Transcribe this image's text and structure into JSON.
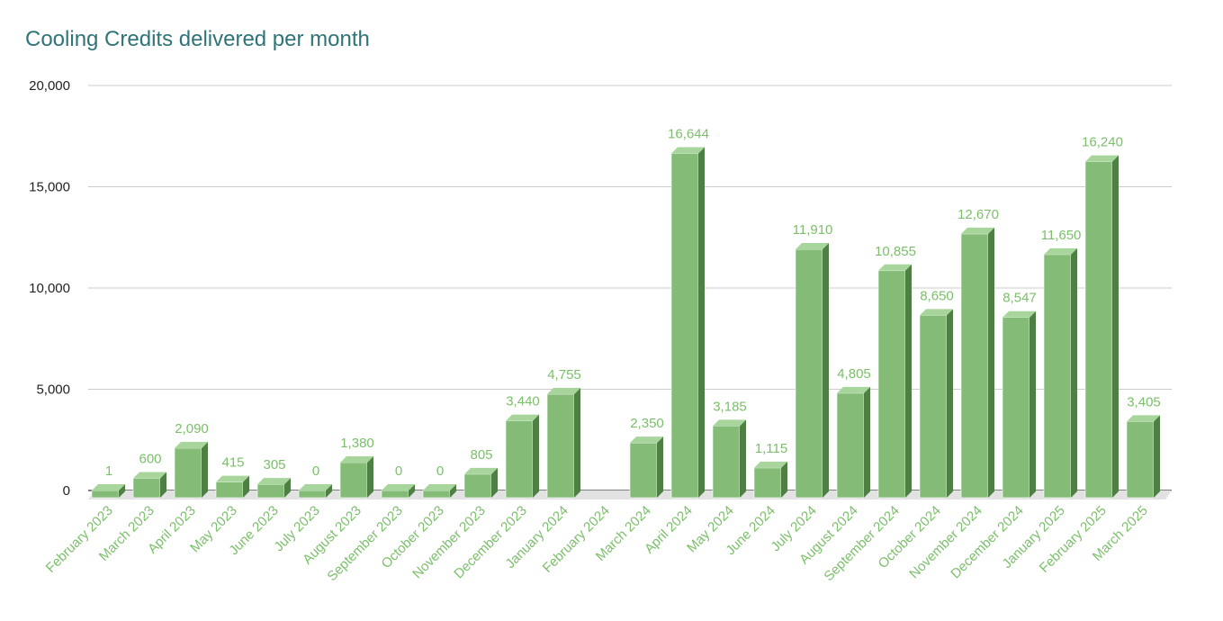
{
  "chart_data": {
    "type": "bar",
    "title": "Cooling Credits delivered per month",
    "xlabel": "",
    "ylabel": "",
    "ylim": [
      0,
      20000
    ],
    "yticks": [
      0,
      5000,
      10000,
      15000,
      20000
    ],
    "ytick_labels": [
      "0",
      "5,000",
      "10,000",
      "15,000",
      "20,000"
    ],
    "grid": true,
    "categories": [
      "February 2023",
      "March 2023",
      "April 2023",
      "May 2023",
      "June 2023",
      "July 2023",
      "August 2023",
      "September 2023",
      "October 2023",
      "November 2023",
      "December 2023",
      "January 2024",
      "February 2024",
      "March 2024",
      "April 2024",
      "May 2024",
      "June 2024",
      "July 2024",
      "August 2024",
      "September 2024",
      "October 2024",
      "November 2024",
      "December 2024",
      "January 2025",
      "February 2025",
      "March 2025"
    ],
    "values": [
      1,
      600,
      2090,
      415,
      305,
      0,
      1380,
      0,
      0,
      805,
      3440,
      4755,
      null,
      2350,
      16644,
      3185,
      1115,
      11910,
      4805,
      10855,
      8650,
      12670,
      8547,
      11650,
      16240,
      3405
    ],
    "value_labels": [
      "1",
      "600",
      "2,090",
      "415",
      "305",
      "0",
      "1,380",
      "0",
      "0",
      "805",
      "3,440",
      "4,755",
      "",
      "2,350",
      "16,644",
      "3,185",
      "1,115",
      "11,910",
      "4,805",
      "10,855",
      "8,650",
      "12,670",
      "8,547",
      "11,650",
      "16,240",
      "3,405"
    ],
    "colors": {
      "bar_front": "#84bc77",
      "bar_side": "#4f7f45",
      "bar_top": "#a7d59b",
      "label": "#7cbf6b",
      "grid": "#cccccc",
      "floor": "#e2e2e2",
      "axis": "#333333"
    }
  }
}
